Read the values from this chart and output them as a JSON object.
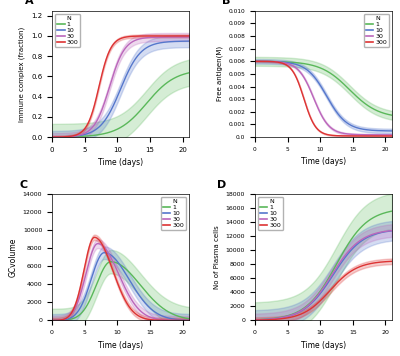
{
  "colors": {
    "1": "#5ab85a",
    "10": "#5577cc",
    "30": "#bb66bb",
    "300": "#dd3333"
  },
  "alpha_fill": 0.25,
  "panel_A": {
    "ylabel": "Immune complex (fraction)",
    "xlabel": "Time (days)",
    "ylim": [
      0.0,
      1.25
    ],
    "yticks": [
      0.0,
      0.2,
      0.4,
      0.6,
      0.8,
      1.0,
      1.2
    ]
  },
  "panel_B": {
    "ylabel": "Free antigen(M)",
    "xlabel": "Time (days)",
    "ylim": [
      0.0,
      0.01
    ],
    "yticks": [
      0.0,
      0.001,
      0.002,
      0.003,
      0.004,
      0.005,
      0.006,
      0.007,
      0.008,
      0.009,
      0.01
    ]
  },
  "panel_C": {
    "ylabel": "GCvolume",
    "xlabel": "Time (days)",
    "ylim": [
      0,
      14000
    ],
    "yticks": [
      0,
      2000,
      4000,
      6000,
      8000,
      10000,
      12000,
      14000
    ]
  },
  "panel_D": {
    "ylabel": "No of Plasma cells",
    "xlabel": "Time (days)",
    "ylim": [
      0,
      18000
    ],
    "yticks": [
      0,
      2000,
      4000,
      6000,
      8000,
      10000,
      12000,
      14000,
      16000,
      18000
    ]
  }
}
